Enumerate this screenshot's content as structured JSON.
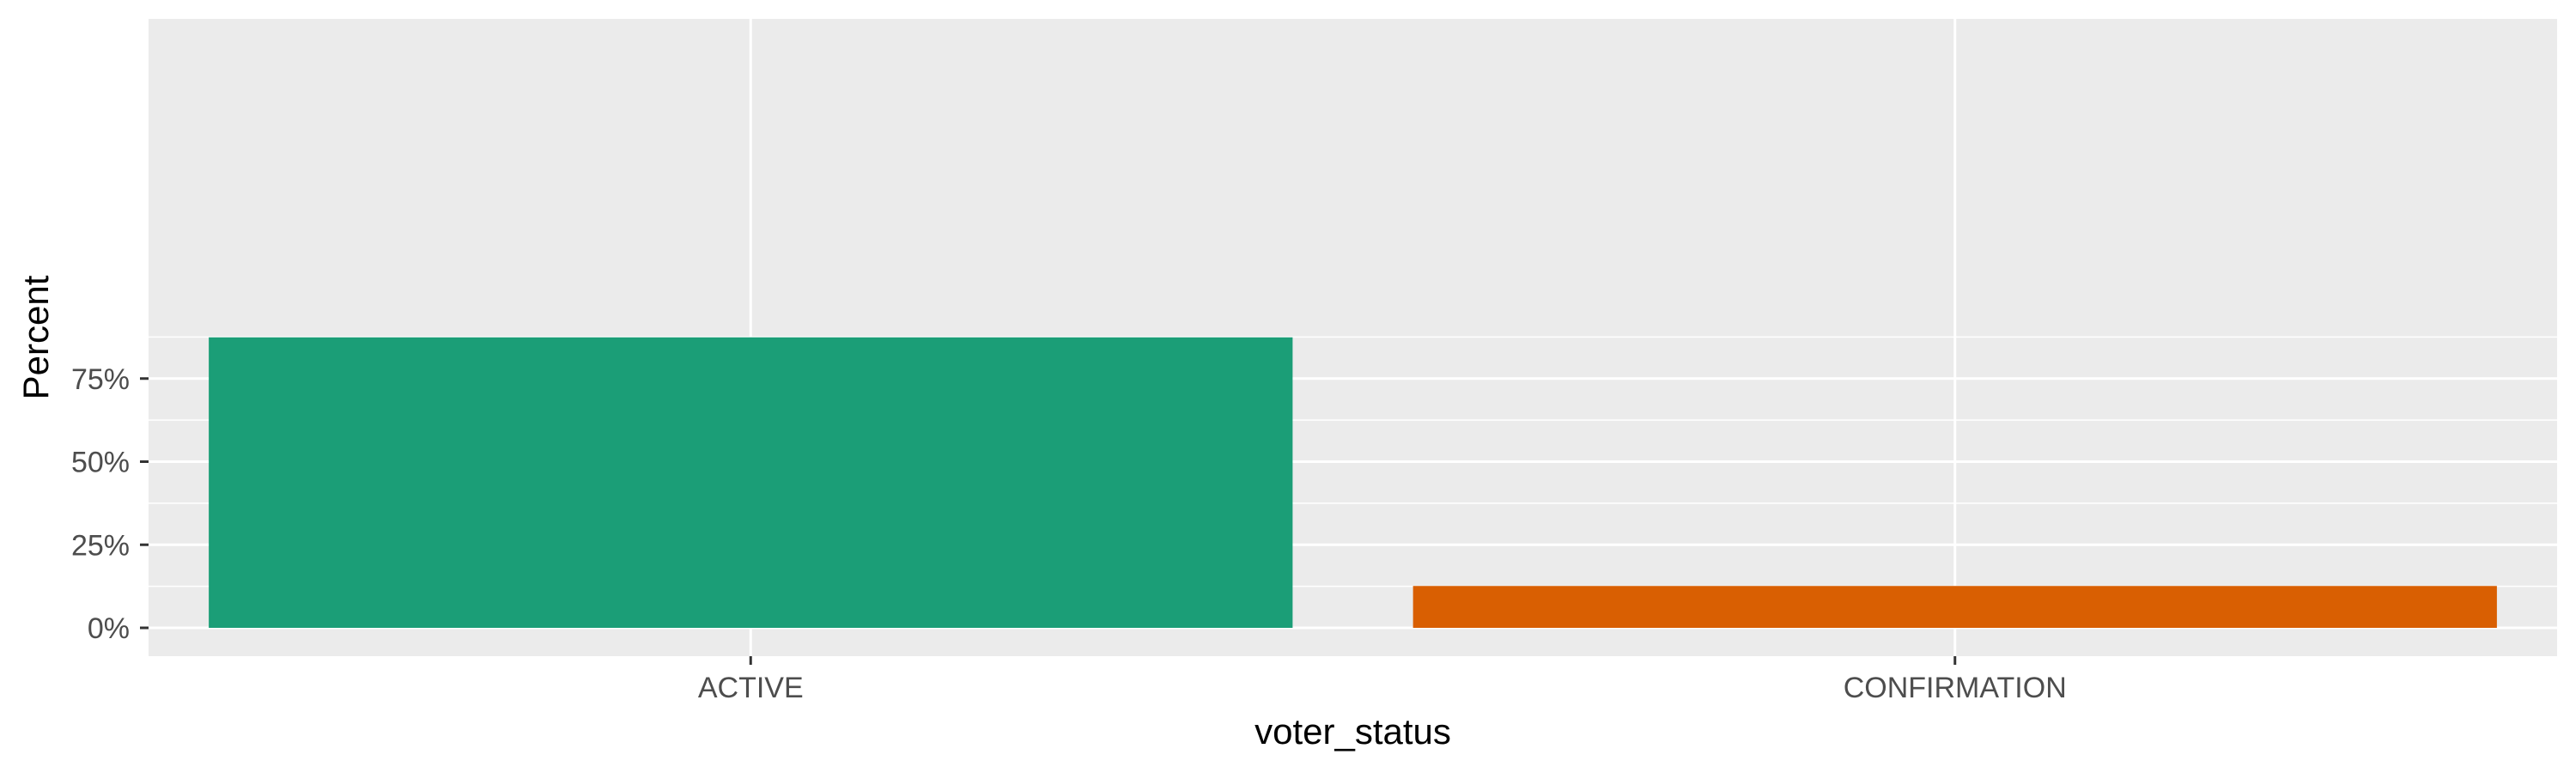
{
  "chart_data": {
    "type": "bar",
    "title": "",
    "xlabel": "voter_status",
    "ylabel": "Percent",
    "categories": [
      "ACTIVE",
      "CONFIRMATION"
    ],
    "values": [
      87.4,
      12.6
    ],
    "value_unit": "percent",
    "ylim": [
      0,
      92
    ],
    "yticks": [
      0,
      25,
      50,
      75
    ],
    "ytick_labels": [
      "0%",
      "25%",
      "50%",
      "75%"
    ],
    "bar_colors": [
      "#1b9e77",
      "#d95f02"
    ],
    "panel_background": "#ebebeb",
    "grid_color": "#ffffff",
    "grid": true,
    "legend": "none"
  }
}
